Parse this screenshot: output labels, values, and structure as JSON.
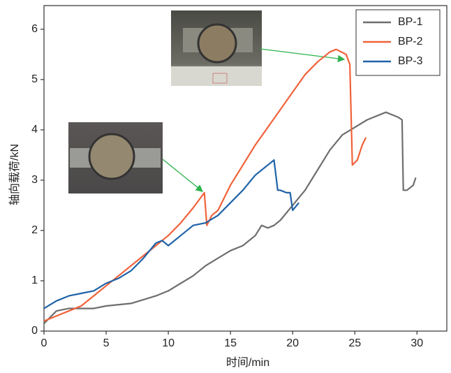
{
  "chart_data": {
    "type": "line",
    "xlabel": "时间/min",
    "ylabel": "轴向载荷/kN",
    "xlim": [
      0,
      32.4
    ],
    "ylim": [
      0,
      6.47
    ],
    "xticks": [
      0,
      5,
      10,
      15,
      20,
      25,
      30
    ],
    "yticks": [
      0,
      1,
      2,
      3,
      4,
      5,
      6
    ],
    "legend": "upper right",
    "series": [
      {
        "name": "BP-1",
        "color": "#6e6e6e",
        "x": [
          0,
          1,
          2,
          4,
          5,
          7,
          9,
          10,
          12,
          13,
          14,
          15,
          16,
          17,
          17.5,
          18,
          18.5,
          19,
          20,
          21,
          22,
          23,
          24,
          25,
          26,
          27,
          27.5,
          28.5,
          28.8,
          28.9,
          29.2,
          29.7,
          29.9
        ],
        "values": [
          0.15,
          0.4,
          0.45,
          0.45,
          0.5,
          0.55,
          0.7,
          0.8,
          1.1,
          1.3,
          1.45,
          1.6,
          1.7,
          1.9,
          2.1,
          2.05,
          2.1,
          2.2,
          2.5,
          2.8,
          3.2,
          3.6,
          3.9,
          4.05,
          4.2,
          4.3,
          4.35,
          4.25,
          4.2,
          2.8,
          2.8,
          2.9,
          3.05
        ]
      },
      {
        "name": "BP-2",
        "color": "#f0623a",
        "x": [
          0,
          1,
          2,
          3,
          4,
          5,
          6,
          7,
          8,
          9,
          10,
          11,
          12,
          12.9,
          13.1,
          13.5,
          14,
          15,
          16,
          17,
          18,
          19,
          20,
          21,
          22,
          23,
          23.5,
          24.3,
          24.6,
          24.8,
          25.2,
          25.6,
          25.9
        ],
        "values": [
          0.2,
          0.3,
          0.4,
          0.5,
          0.7,
          0.9,
          1.1,
          1.3,
          1.5,
          1.7,
          1.9,
          2.15,
          2.45,
          2.75,
          2.1,
          2.3,
          2.4,
          2.9,
          3.3,
          3.7,
          4.05,
          4.4,
          4.75,
          5.1,
          5.35,
          5.55,
          5.6,
          5.5,
          5.3,
          3.3,
          3.4,
          3.7,
          3.85
        ]
      },
      {
        "name": "BP-3",
        "color": "#1f63a8",
        "x": [
          0,
          1,
          2,
          3,
          4,
          5,
          6,
          7,
          8,
          9,
          9.5,
          10,
          10.5,
          11,
          12,
          13,
          14,
          15,
          16,
          17,
          18,
          18.5,
          18.8,
          19,
          19.5,
          19.8,
          20,
          20.5
        ],
        "values": [
          0.45,
          0.6,
          0.7,
          0.75,
          0.8,
          0.95,
          1.05,
          1.2,
          1.45,
          1.75,
          1.8,
          1.7,
          1.8,
          1.9,
          2.1,
          2.15,
          2.3,
          2.55,
          2.8,
          3.1,
          3.3,
          3.4,
          2.8,
          2.8,
          2.75,
          2.75,
          2.4,
          2.55
        ]
      }
    ]
  }
}
